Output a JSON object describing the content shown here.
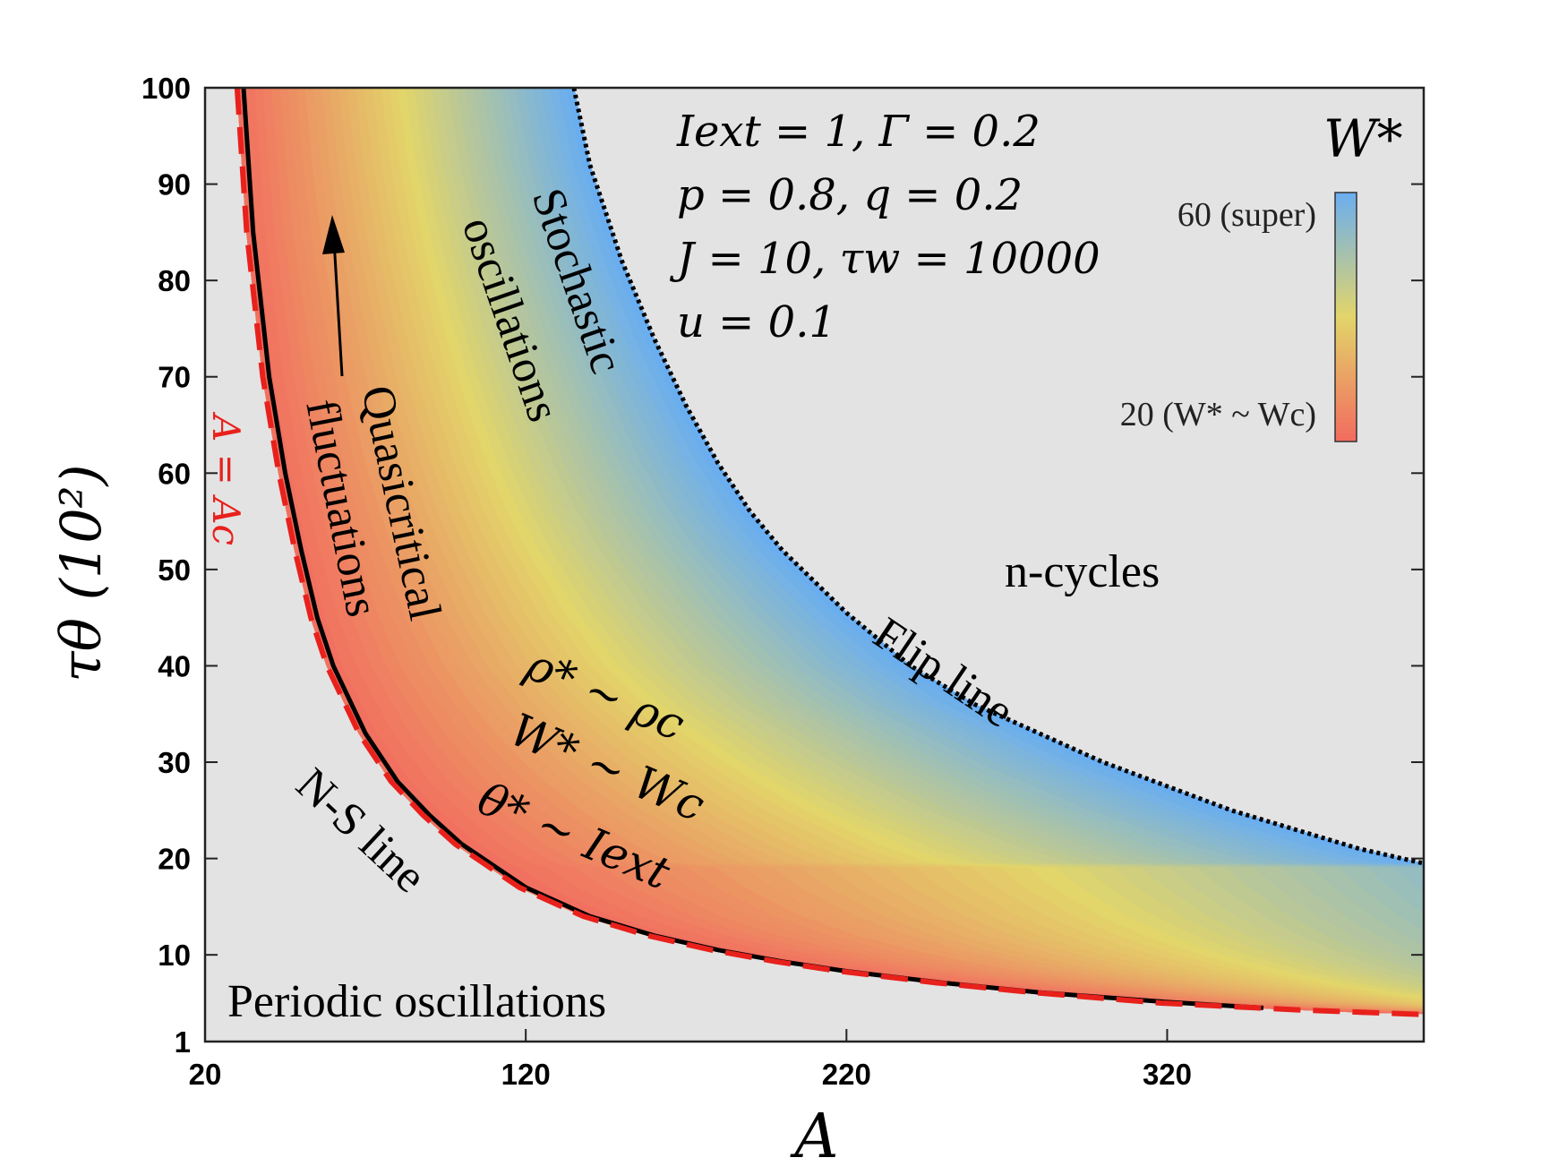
{
  "chart_data": {
    "type": "area",
    "title": "",
    "xlabel": "A",
    "ylabel": "τθ (10²)",
    "xlim": [
      20,
      400
    ],
    "ylim": [
      1,
      100
    ],
    "x_ticks": [
      "20",
      "120",
      "220",
      "320"
    ],
    "y_ticks": [
      "1",
      "10",
      "20",
      "30",
      "40",
      "50",
      "60",
      "70",
      "80",
      "90",
      "100"
    ],
    "background_color": "#e3e3e3",
    "colormap": [
      "#f26b5f",
      "#e2d56a",
      "#6aaef0"
    ],
    "colorbar": {
      "title": "W*",
      "top_label": "60 (super)",
      "bottom_label": "20 (W* ~ Wc)",
      "range": [
        20,
        60
      ]
    },
    "parameters": [
      "Iext = 1, Γ = 0.2",
      "p = 0.8, q = 0.2",
      "J = 10, τw = 10000",
      "u = 0.1"
    ],
    "regions": [
      "Periodic oscillations",
      "n-cycles",
      "Quasicritical fluctuations",
      "Stochastic oscillations"
    ],
    "lines": {
      "ns_line": {
        "label": "N-S line",
        "color": "#000000",
        "points": [
          [
            32,
            100
          ],
          [
            35,
            85
          ],
          [
            40,
            70
          ],
          [
            45,
            60
          ],
          [
            50,
            52
          ],
          [
            55,
            45
          ],
          [
            60,
            40
          ],
          [
            70,
            33
          ],
          [
            80,
            28
          ],
          [
            90,
            24.5
          ],
          [
            100,
            21.5
          ],
          [
            120,
            17
          ],
          [
            140,
            14
          ],
          [
            160,
            12
          ],
          [
            180,
            10.5
          ],
          [
            200,
            9.3
          ],
          [
            220,
            8.3
          ],
          [
            250,
            7.1
          ],
          [
            280,
            6.1
          ],
          [
            320,
            5.1
          ],
          [
            350,
            4.5
          ]
        ]
      },
      "ac_line": {
        "label": "A = Ac",
        "color": "#e8211c",
        "points": [
          [
            30,
            100
          ],
          [
            33,
            85
          ],
          [
            38,
            70
          ],
          [
            43,
            60
          ],
          [
            48,
            52
          ],
          [
            53,
            45
          ],
          [
            58,
            40
          ],
          [
            68,
            33
          ],
          [
            78,
            28
          ],
          [
            88,
            24.5
          ],
          [
            98,
            21.5
          ],
          [
            118,
            17
          ],
          [
            138,
            14
          ],
          [
            158,
            12
          ],
          [
            178,
            10.5
          ],
          [
            198,
            9.3
          ],
          [
            218,
            8.3
          ],
          [
            248,
            7.1
          ],
          [
            278,
            6.1
          ],
          [
            318,
            5.0
          ],
          [
            360,
            4.3
          ],
          [
            400,
            3.8
          ]
        ]
      },
      "flip_line": {
        "label": "Flip line",
        "color": "#000000",
        "points": [
          [
            135,
            100
          ],
          [
            140,
            92
          ],
          [
            150,
            82
          ],
          [
            160,
            74
          ],
          [
            170,
            67
          ],
          [
            180,
            61
          ],
          [
            190,
            56
          ],
          [
            200,
            52
          ],
          [
            220,
            45.5
          ],
          [
            240,
            40
          ],
          [
            260,
            36
          ],
          [
            280,
            33
          ],
          [
            300,
            30
          ],
          [
            320,
            27.5
          ],
          [
            340,
            25
          ],
          [
            360,
            23
          ],
          [
            380,
            21
          ],
          [
            400,
            19.5
          ]
        ]
      }
    },
    "annotations": {
      "arrow_direction": "up",
      "quasi_line1": "Quasicritical",
      "quasi_line2": "fluctuations",
      "stoch_line1": "Stochastic",
      "stoch_line2": "oscillations",
      "rho": "ρ* ~ ρc",
      "w": "W* ~ Wc",
      "theta": "θ* ~ Iext"
    }
  }
}
